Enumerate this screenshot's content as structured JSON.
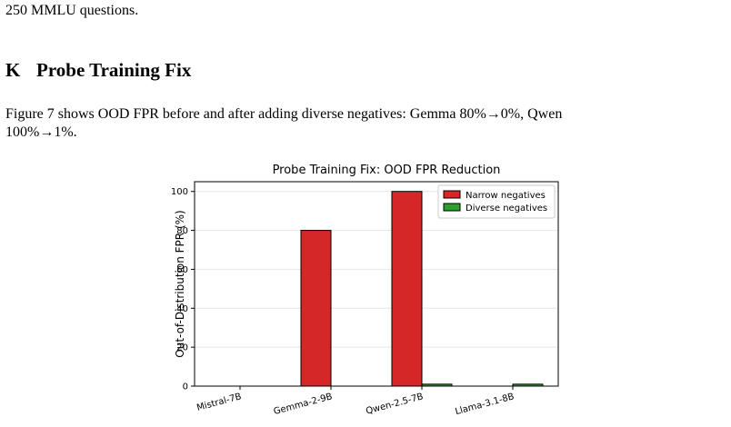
{
  "text": {
    "lead_line": "250 MMLU questions.",
    "section_number": "K",
    "section_title": "Probe Training Fix",
    "paragraph_line1": "Figure 7 shows OOD FPR before and after adding diverse negatives: Gemma 80%→0%, Qwen",
    "paragraph_line2": "100%→1%."
  },
  "chart_data": {
    "type": "bar",
    "title": "Probe Training Fix: OOD FPR Reduction",
    "xlabel": "",
    "ylabel": "Out-of-Distribution FPR (%)",
    "categories": [
      "Mistral-7B",
      "Gemma-2-9B",
      "Qwen-2.5-7B",
      "Llama-3.1-8B"
    ],
    "series": [
      {
        "name": "Narrow negatives",
        "values": [
          0,
          80,
          100,
          0
        ],
        "color": "#d62728"
      },
      {
        "name": "Diverse negatives",
        "values": [
          0,
          0,
          1,
          1
        ],
        "color": "#2ca02c"
      }
    ],
    "ylim": [
      0,
      105
    ],
    "yticks": [
      0,
      20,
      40,
      60,
      80,
      100
    ],
    "grid": true,
    "legend_position": "top-right"
  }
}
